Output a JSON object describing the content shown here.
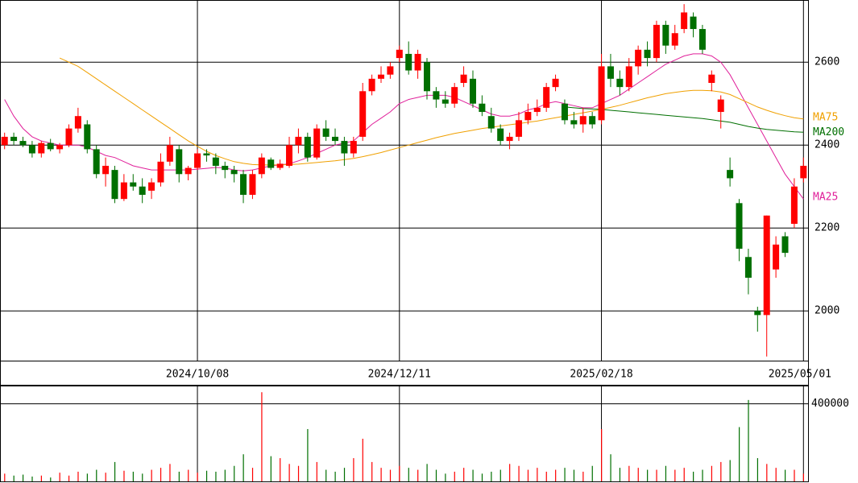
{
  "chart_data": {
    "type": "candlestick",
    "grid": true,
    "up_color": "#ff0000",
    "down_color": "#006f00",
    "categories": [
      null,
      null,
      null,
      null,
      null,
      null,
      null,
      null,
      null,
      null,
      null,
      null,
      null,
      null,
      null,
      null,
      null,
      null,
      null,
      null,
      null,
      "2024/10/08",
      null,
      null,
      null,
      null,
      null,
      null,
      null,
      null,
      null,
      null,
      null,
      null,
      null,
      null,
      null,
      null,
      null,
      null,
      null,
      null,
      null,
      "2024/12/11",
      null,
      null,
      null,
      null,
      null,
      null,
      null,
      null,
      null,
      null,
      null,
      null,
      null,
      null,
      null,
      null,
      null,
      null,
      null,
      null,
      null,
      "2025/02/18",
      null,
      null,
      null,
      null,
      null,
      null,
      null,
      null,
      null,
      null,
      null,
      null,
      null,
      null,
      null,
      null,
      null,
      null,
      null,
      null,
      null,
      "2025/05/01"
    ],
    "open": [
      2400,
      2420,
      2410,
      2400,
      2380,
      2405,
      2390,
      2400,
      2440,
      2450,
      2390,
      2330,
      2340,
      2270,
      2310,
      2300,
      2290,
      2310,
      2360,
      2390,
      2330,
      2345,
      2380,
      2370,
      2350,
      2340,
      2330,
      2280,
      2330,
      2365,
      2345,
      2350,
      2400,
      2420,
      2370,
      2440,
      2420,
      2410,
      2380,
      2420,
      2530,
      2560,
      2570,
      2610,
      2620,
      2580,
      2600,
      2530,
      2510,
      2500,
      2550,
      2560,
      2500,
      2470,
      2440,
      2410,
      2420,
      2460,
      2480,
      2490,
      2540,
      2500,
      2460,
      2450,
      2470,
      2460,
      2590,
      2560,
      2540,
      2590,
      2630,
      2610,
      2690,
      2640,
      2680,
      2710,
      2680,
      2550,
      2480,
      2340,
      2260,
      2130,
      2000,
      1990,
      2100,
      2180,
      2210,
      2320
    ],
    "high": [
      2430,
      2430,
      2420,
      2410,
      2410,
      2415,
      2405,
      2450,
      2490,
      2460,
      2400,
      2370,
      2350,
      2330,
      2330,
      2320,
      2320,
      2380,
      2420,
      2400,
      2350,
      2390,
      2390,
      2380,
      2360,
      2350,
      2340,
      2340,
      2380,
      2370,
      2365,
      2420,
      2440,
      2430,
      2450,
      2460,
      2440,
      2420,
      2420,
      2550,
      2570,
      2590,
      2600,
      2640,
      2650,
      2630,
      2610,
      2540,
      2530,
      2550,
      2590,
      2580,
      2520,
      2490,
      2450,
      2430,
      2480,
      2500,
      2510,
      2550,
      2570,
      2510,
      2480,
      2490,
      2480,
      2620,
      2620,
      2580,
      2610,
      2640,
      2650,
      2700,
      2700,
      2690,
      2740,
      2720,
      2690,
      2580,
      2520,
      2370,
      2270,
      2150,
      2010,
      2230,
      2180,
      2190,
      2320,
      2370
    ],
    "low": [
      2390,
      2400,
      2395,
      2370,
      2370,
      2385,
      2380,
      2395,
      2430,
      2380,
      2320,
      2300,
      2260,
      2265,
      2290,
      2260,
      2270,
      2300,
      2350,
      2310,
      2315,
      2340,
      2360,
      2330,
      2320,
      2310,
      2260,
      2270,
      2320,
      2340,
      2340,
      2345,
      2380,
      2360,
      2365,
      2410,
      2400,
      2350,
      2370,
      2410,
      2520,
      2550,
      2560,
      2600,
      2570,
      2560,
      2510,
      2490,
      2490,
      2490,
      2540,
      2490,
      2470,
      2430,
      2400,
      2390,
      2410,
      2450,
      2470,
      2480,
      2530,
      2450,
      2440,
      2430,
      2440,
      2450,
      2540,
      2520,
      2530,
      2570,
      2590,
      2600,
      2620,
      2630,
      2670,
      2660,
      2620,
      2530,
      2440,
      2300,
      2120,
      2040,
      1950,
      1890,
      2080,
      2130,
      2200,
      2310
    ],
    "close": [
      2420,
      2410,
      2400,
      2380,
      2405,
      2390,
      2400,
      2440,
      2470,
      2390,
      2330,
      2350,
      2270,
      2310,
      2300,
      2280,
      2310,
      2360,
      2400,
      2330,
      2345,
      2380,
      2375,
      2350,
      2340,
      2330,
      2280,
      2330,
      2370,
      2345,
      2355,
      2400,
      2420,
      2370,
      2440,
      2420,
      2410,
      2380,
      2410,
      2530,
      2560,
      2570,
      2590,
      2630,
      2580,
      2620,
      2530,
      2510,
      2500,
      2540,
      2570,
      2500,
      2480,
      2440,
      2410,
      2420,
      2460,
      2480,
      2490,
      2540,
      2560,
      2460,
      2450,
      2470,
      2450,
      2590,
      2560,
      2540,
      2590,
      2630,
      2610,
      2690,
      2640,
      2670,
      2720,
      2680,
      2630,
      2570,
      2510,
      2320,
      2150,
      2080,
      1990,
      2230,
      2160,
      2140,
      2300,
      2350
    ],
    "ylim": [
      1880,
      2750
    ],
    "yticks": [
      2000,
      2200,
      2400,
      2600
    ],
    "series": [
      {
        "name": "MA25",
        "color": "#e0209a",
        "values": [
          2510,
          2470,
          2440,
          2420,
          2410,
          2405,
          2400,
          2400,
          2400,
          2395,
          2385,
          2375,
          2370,
          2360,
          2350,
          2345,
          2340,
          2340,
          2340,
          2340,
          2340,
          2342,
          2344,
          2346,
          2345,
          2340,
          2338,
          2340,
          2345,
          2350,
          2352,
          2355,
          2362,
          2370,
          2380,
          2390,
          2400,
          2405,
          2410,
          2430,
          2450,
          2465,
          2480,
          2500,
          2510,
          2515,
          2520,
          2520,
          2520,
          2515,
          2505,
          2495,
          2485,
          2475,
          2470,
          2470,
          2475,
          2485,
          2490,
          2500,
          2505,
          2500,
          2495,
          2490,
          2490,
          2500,
          2510,
          2520,
          2535,
          2550,
          2565,
          2580,
          2595,
          2605,
          2615,
          2620,
          2620,
          2615,
          2600,
          2570,
          2530,
          2490,
          2450,
          2410,
          2370,
          2330,
          2300,
          2270
        ]
      },
      {
        "name": "MA75",
        "color": "#f0a000",
        "values": [
          null,
          null,
          null,
          null,
          null,
          null,
          2610,
          2600,
          2590,
          2575,
          2560,
          2545,
          2530,
          2515,
          2500,
          2485,
          2470,
          2455,
          2440,
          2425,
          2410,
          2397,
          2385,
          2375,
          2367,
          2360,
          2356,
          2353,
          2352,
          2352,
          2352,
          2353,
          2354,
          2356,
          2358,
          2360,
          2362,
          2365,
          2368,
          2372,
          2377,
          2382,
          2388,
          2394,
          2400,
          2406,
          2412,
          2418,
          2423,
          2428,
          2432,
          2436,
          2440,
          2443,
          2446,
          2449,
          2452,
          2455,
          2458,
          2462,
          2466,
          2470,
          2474,
          2478,
          2482,
          2486,
          2491,
          2496,
          2502,
          2508,
          2514,
          2519,
          2524,
          2527,
          2530,
          2532,
          2532,
          2531,
          2528,
          2522,
          2512,
          2502,
          2492,
          2484,
          2477,
          2471,
          2466,
          2463
        ]
      },
      {
        "name": "MA200",
        "color": "#006f00",
        "values": [
          null,
          null,
          null,
          null,
          null,
          null,
          null,
          null,
          null,
          null,
          null,
          null,
          null,
          null,
          null,
          null,
          null,
          null,
          null,
          null,
          null,
          null,
          null,
          null,
          null,
          null,
          null,
          null,
          null,
          null,
          null,
          null,
          null,
          null,
          null,
          null,
          null,
          null,
          null,
          null,
          null,
          null,
          null,
          null,
          null,
          null,
          null,
          null,
          null,
          null,
          null,
          null,
          null,
          null,
          null,
          null,
          null,
          null,
          null,
          null,
          null,
          2492,
          2490,
          2488,
          2487,
          2486,
          2484,
          2482,
          2480,
          2478,
          2476,
          2474,
          2472,
          2470,
          2468,
          2466,
          2464,
          2461,
          2458,
          2455,
          2450,
          2445,
          2441,
          2438,
          2436,
          2434,
          2432,
          2431
        ]
      }
    ],
    "volume": {
      "values": [
        40000,
        30000,
        35000,
        25000,
        30000,
        20000,
        45000,
        30000,
        50000,
        40000,
        60000,
        45000,
        100000,
        55000,
        50000,
        40000,
        60000,
        70000,
        90000,
        50000,
        60000,
        45000,
        55000,
        50000,
        60000,
        80000,
        140000,
        70000,
        460000,
        130000,
        120000,
        90000,
        80000,
        270000,
        100000,
        60000,
        50000,
        70000,
        120000,
        220000,
        100000,
        70000,
        60000,
        80000,
        70000,
        60000,
        90000,
        60000,
        40000,
        50000,
        70000,
        60000,
        40000,
        50000,
        60000,
        90000,
        80000,
        60000,
        70000,
        50000,
        60000,
        70000,
        60000,
        50000,
        80000,
        270000,
        140000,
        70000,
        80000,
        70000,
        60000,
        60000,
        80000,
        60000,
        70000,
        50000,
        60000,
        80000,
        100000,
        110000,
        280000,
        420000,
        120000,
        90000,
        70000,
        60000,
        60000,
        40000
      ],
      "ylim": [
        0,
        490000
      ],
      "yticks": [
        400000
      ]
    }
  }
}
